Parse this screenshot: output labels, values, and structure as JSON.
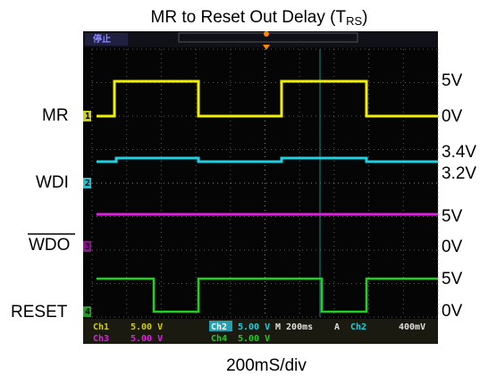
{
  "title": {
    "text": "MR to Reset Out Delay (T",
    "subscript": "RS",
    "close": ")"
  },
  "signals": [
    {
      "label": "MR",
      "levels": [
        "5V",
        "0V"
      ]
    },
    {
      "label": "WDI",
      "levels": [
        "3.4V",
        "3.2V"
      ]
    },
    {
      "label": "WDO",
      "levels": [
        "5V",
        "0V"
      ]
    },
    {
      "label": "RESET",
      "levels": [
        "5V",
        "0V"
      ]
    }
  ],
  "scope": {
    "status": "停止",
    "markers": [
      "1",
      "2",
      "3",
      "4"
    ],
    "channels": [
      {
        "name": "Ch1",
        "scale": "5.00 V"
      },
      {
        "name": "Ch2",
        "scale": "5.00 V"
      },
      {
        "name": "Ch3",
        "scale": "5.00 V"
      },
      {
        "name": "Ch4",
        "scale": "5.00 V"
      }
    ],
    "timebase": "M 200ms",
    "trigger": {
      "mode": "A",
      "source": "Ch2",
      "level": "400mV"
    }
  },
  "footer": "200mS/div"
}
